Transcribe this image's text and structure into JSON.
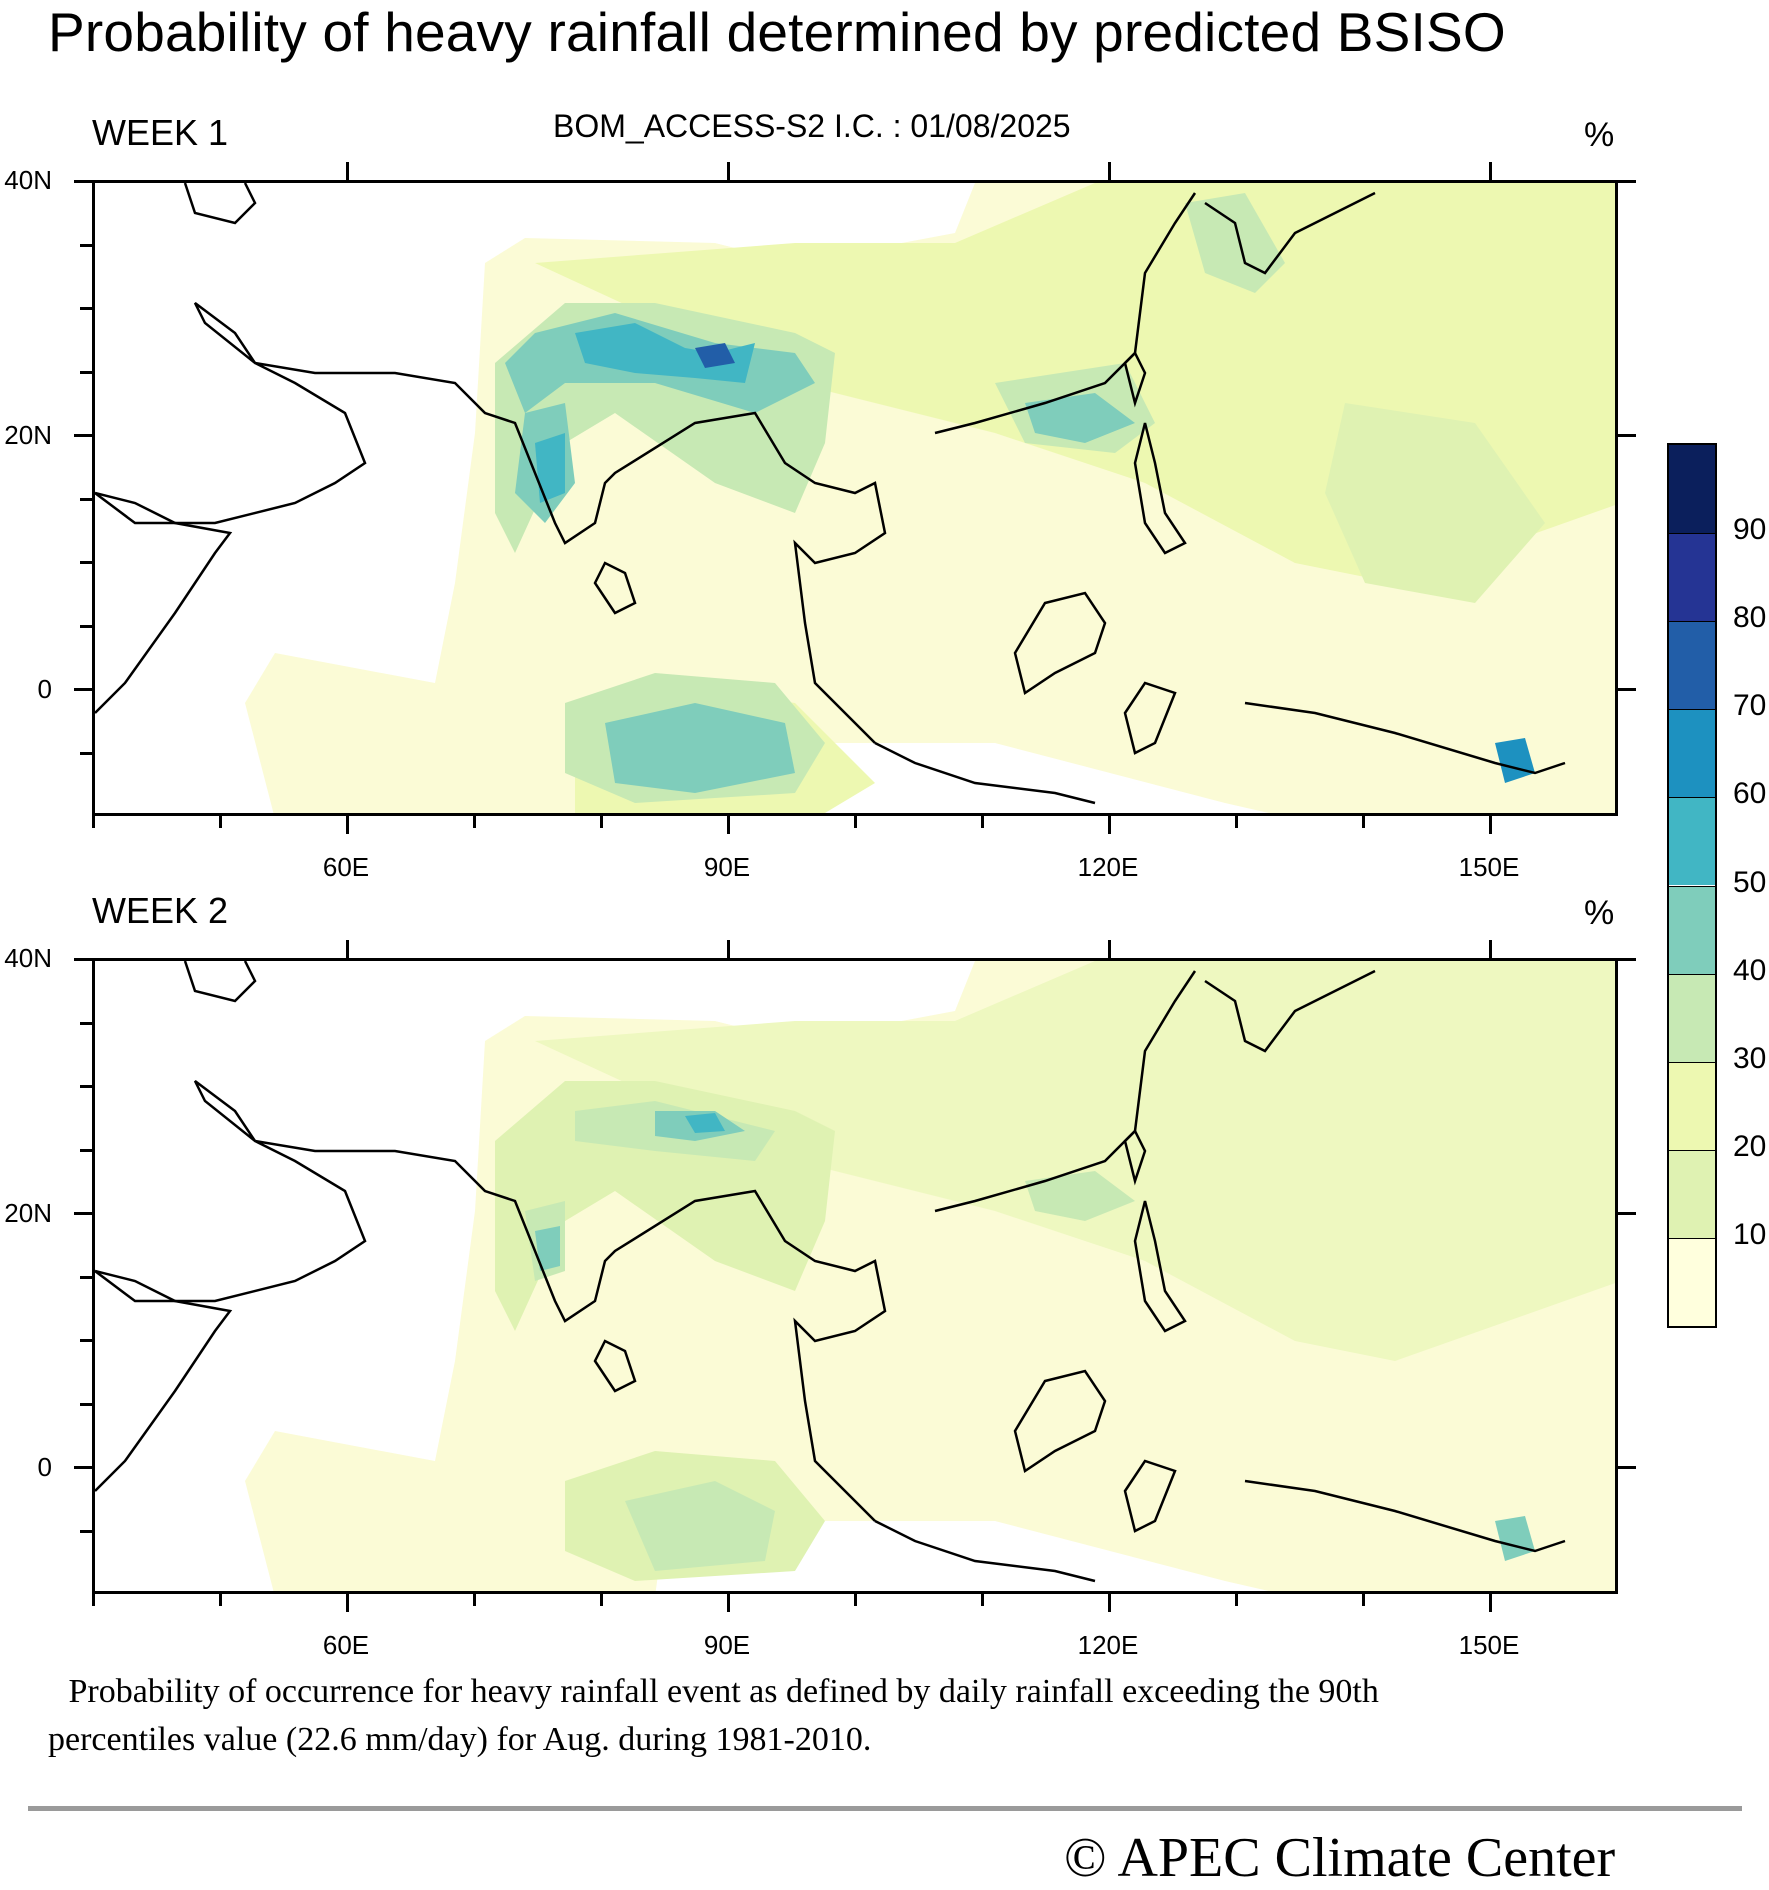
{
  "title": "Probability of heavy rainfall determined by predicted BSISO",
  "subtitle": "BOM_ACCESS-S2  I.C. : 01/08/2025",
  "panels": [
    {
      "label": "WEEK 1",
      "unit": "%"
    },
    {
      "label": "WEEK 2",
      "unit": "%"
    }
  ],
  "lat_labels": [
    "40N",
    "20N",
    "0"
  ],
  "lon_labels": [
    "60E",
    "90E",
    "120E",
    "150E"
  ],
  "map_extent": {
    "lon_range": [
      40,
      160
    ],
    "lat_range": [
      -10,
      40
    ]
  },
  "colorbar": {
    "labels": [
      "90",
      "80",
      "70",
      "60",
      "50",
      "40",
      "30",
      "20",
      "10"
    ],
    "colors": [
      "#0b1f5c",
      "#253494",
      "#225ea8",
      "#1d91c0",
      "#41b6c4",
      "#7fcdbb",
      "#c7e9b4",
      "#edf8b1",
      "#dff2b2",
      "#ffffdd"
    ]
  },
  "caption_line1": " Probability of occurrence for heavy rainfall event as defined by daily rainfall exceeding the 90th",
  "caption_line2": "percentiles value (22.6 mm/day) for Aug. during 1981-2010.",
  "copyright": "© APEC Climate Center"
}
